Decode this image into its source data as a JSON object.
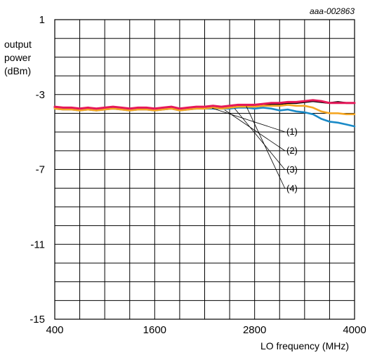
{
  "chart_data": {
    "type": "line",
    "figure_id": "aaa-002863",
    "ylabel_lines": [
      "output",
      "power",
      "(dBm)"
    ],
    "xlabel": "LO frequency (MHz)",
    "xlim": [
      400,
      4000
    ],
    "ylim": [
      -15,
      1
    ],
    "x_tick_labels": [
      {
        "value": 400,
        "label": "400"
      },
      {
        "value": 1600,
        "label": "1600"
      },
      {
        "value": 2800,
        "label": "2800"
      },
      {
        "value": 4000,
        "label": "4000"
      }
    ],
    "y_tick_labels": [
      {
        "value": 1,
        "label": "1"
      },
      {
        "value": -3,
        "label": "-3"
      },
      {
        "value": -7,
        "label": "-7"
      },
      {
        "value": -11,
        "label": "-11"
      },
      {
        "value": -15,
        "label": "-15"
      }
    ],
    "grid": true,
    "x_grid_step": 300,
    "y_grid_step": 1,
    "series": [
      {
        "name": "(1)",
        "color": "#000000",
        "x": [
          400,
          500,
          600,
          700,
          800,
          900,
          1000,
          1100,
          1200,
          1300,
          1400,
          1500,
          1600,
          1700,
          1800,
          1900,
          2000,
          2100,
          2200,
          2300,
          2400,
          2500,
          2600,
          2700,
          2800,
          2900,
          3000,
          3100,
          3200,
          3300,
          3400,
          3500,
          3600,
          3700,
          3800,
          3900,
          4000
        ],
        "y": [
          -3.7,
          -3.75,
          -3.75,
          -3.8,
          -3.75,
          -3.8,
          -3.75,
          -3.7,
          -3.75,
          -3.8,
          -3.75,
          -3.75,
          -3.8,
          -3.75,
          -3.7,
          -3.8,
          -3.75,
          -3.7,
          -3.7,
          -3.65,
          -3.7,
          -3.65,
          -3.6,
          -3.6,
          -3.6,
          -3.55,
          -3.5,
          -3.5,
          -3.45,
          -3.45,
          -3.4,
          -3.35,
          -3.4,
          -3.45,
          -3.4,
          -3.45,
          -3.45
        ]
      },
      {
        "name": "(2)",
        "color": "#1a8ac7",
        "x": [
          400,
          500,
          600,
          700,
          800,
          900,
          1000,
          1100,
          1200,
          1300,
          1400,
          1500,
          1600,
          1700,
          1800,
          1900,
          2000,
          2100,
          2200,
          2300,
          2400,
          2500,
          2600,
          2700,
          2800,
          2900,
          3000,
          3100,
          3200,
          3300,
          3400,
          3500,
          3600,
          3700,
          3800,
          3900,
          4000
        ],
        "y": [
          -3.75,
          -3.8,
          -3.8,
          -3.85,
          -3.8,
          -3.85,
          -3.8,
          -3.75,
          -3.8,
          -3.85,
          -3.8,
          -3.8,
          -3.85,
          -3.8,
          -3.75,
          -3.85,
          -3.8,
          -3.75,
          -3.75,
          -3.75,
          -3.75,
          -3.75,
          -3.7,
          -3.7,
          -3.75,
          -3.7,
          -3.75,
          -3.85,
          -3.8,
          -3.9,
          -3.95,
          -4.05,
          -4.3,
          -4.45,
          -4.5,
          -4.6,
          -4.7
        ]
      },
      {
        "name": "(3)",
        "color": "#f5a623",
        "x": [
          400,
          500,
          600,
          700,
          800,
          900,
          1000,
          1100,
          1200,
          1300,
          1400,
          1500,
          1600,
          1700,
          1800,
          1900,
          2000,
          2100,
          2200,
          2300,
          2400,
          2500,
          2600,
          2700,
          2800,
          2900,
          3000,
          3100,
          3200,
          3300,
          3400,
          3500,
          3600,
          3700,
          3800,
          3900,
          4000
        ],
        "y": [
          -3.75,
          -3.8,
          -3.8,
          -3.85,
          -3.8,
          -3.85,
          -3.8,
          -3.75,
          -3.8,
          -3.85,
          -3.8,
          -3.8,
          -3.85,
          -3.8,
          -3.75,
          -3.85,
          -3.8,
          -3.75,
          -3.75,
          -3.7,
          -3.75,
          -3.7,
          -3.65,
          -3.65,
          -3.65,
          -3.6,
          -3.6,
          -3.6,
          -3.55,
          -3.6,
          -3.6,
          -3.7,
          -3.9,
          -4.0,
          -4.0,
          -4.05,
          -4.05
        ]
      },
      {
        "name": "(4)",
        "color": "#e6195a",
        "x": [
          400,
          500,
          600,
          700,
          800,
          900,
          1000,
          1100,
          1200,
          1300,
          1400,
          1500,
          1600,
          1700,
          1800,
          1900,
          2000,
          2100,
          2200,
          2300,
          2400,
          2500,
          2600,
          2700,
          2800,
          2900,
          3000,
          3100,
          3200,
          3300,
          3400,
          3500,
          3600,
          3700,
          3800,
          3900,
          4000
        ],
        "y": [
          -3.65,
          -3.7,
          -3.7,
          -3.75,
          -3.7,
          -3.75,
          -3.7,
          -3.65,
          -3.7,
          -3.75,
          -3.7,
          -3.7,
          -3.75,
          -3.7,
          -3.65,
          -3.75,
          -3.7,
          -3.65,
          -3.65,
          -3.6,
          -3.65,
          -3.6,
          -3.55,
          -3.55,
          -3.55,
          -3.5,
          -3.45,
          -3.45,
          -3.4,
          -3.4,
          -3.35,
          -3.3,
          -3.35,
          -3.45,
          -3.45,
          -3.45,
          -3.45
        ]
      }
    ],
    "callout_anchor_x": [
      2290,
      2440,
      2560,
      2700
    ]
  }
}
